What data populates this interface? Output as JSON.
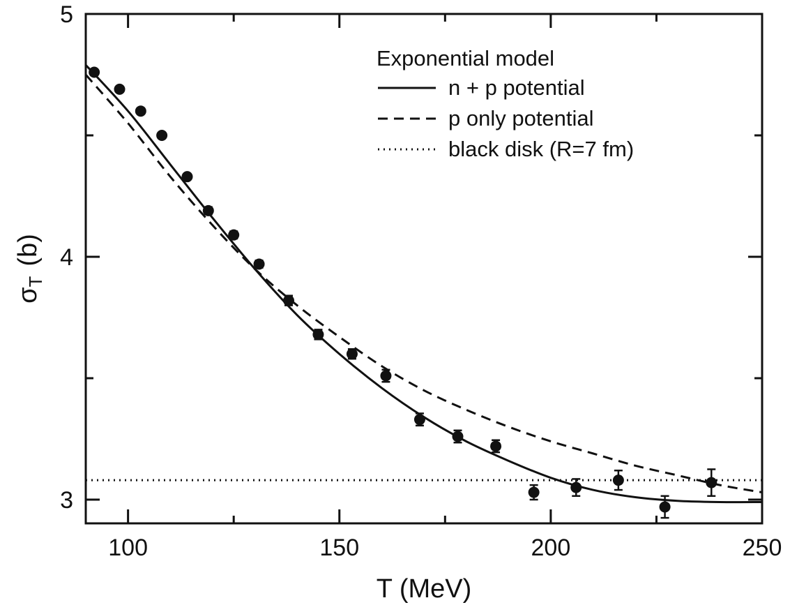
{
  "chart_data": {
    "type": "line",
    "title": "",
    "xlabel": "T (MeV)",
    "ylabel_main": "σ",
    "ylabel_sub": "T",
    "ylabel_unit": "(b)",
    "xlim": [
      90,
      250
    ],
    "ylim": [
      2.95,
      5.0
    ],
    "x_ticks_major": [
      100,
      150,
      200,
      250
    ],
    "x_ticks_minor": [
      125,
      175,
      225
    ],
    "y_ticks_major": [
      3,
      4,
      5
    ],
    "y_ticks_minor": [
      3.5,
      4.5
    ],
    "legend": {
      "placement": "top-right",
      "title": "Exponential model"
    },
    "series": [
      {
        "name": "n + p potential",
        "style": "solid",
        "x": [
          90,
          100,
          110,
          120,
          130,
          140,
          150,
          160,
          170,
          180,
          190,
          200,
          210,
          220,
          230,
          240,
          250
        ],
        "y": [
          4.79,
          4.6,
          4.38,
          4.16,
          3.95,
          3.76,
          3.6,
          3.46,
          3.34,
          3.24,
          3.16,
          3.09,
          3.04,
          3.01,
          2.995,
          2.99,
          2.99
        ]
      },
      {
        "name": "p only potential",
        "style": "dashed",
        "x": [
          90,
          100,
          110,
          120,
          130,
          140,
          150,
          160,
          170,
          180,
          190,
          200,
          210,
          220,
          230,
          240,
          250
        ],
        "y": [
          4.75,
          4.55,
          4.33,
          4.13,
          3.95,
          3.8,
          3.67,
          3.55,
          3.45,
          3.37,
          3.3,
          3.24,
          3.19,
          3.14,
          3.1,
          3.06,
          3.03
        ]
      },
      {
        "name": "black disk (R=7 fm)",
        "style": "dotted",
        "x": [
          90,
          250
        ],
        "y": [
          3.08,
          3.08
        ]
      }
    ],
    "data_points": {
      "x": [
        92,
        98,
        103,
        108,
        114,
        119,
        125,
        131,
        138,
        145,
        153,
        161,
        169,
        178,
        187,
        196,
        206,
        216,
        227,
        238
      ],
      "y": [
        4.76,
        4.69,
        4.6,
        4.5,
        4.33,
        4.19,
        4.09,
        3.97,
        3.82,
        3.68,
        3.6,
        3.51,
        3.33,
        3.26,
        3.22,
        3.03,
        3.05,
        3.08,
        2.97,
        3.07
      ],
      "err": [
        0.01,
        0.01,
        0.01,
        0.01,
        0.01,
        0.015,
        0.015,
        0.015,
        0.02,
        0.02,
        0.02,
        0.025,
        0.025,
        0.025,
        0.025,
        0.03,
        0.035,
        0.04,
        0.045,
        0.055
      ]
    }
  }
}
